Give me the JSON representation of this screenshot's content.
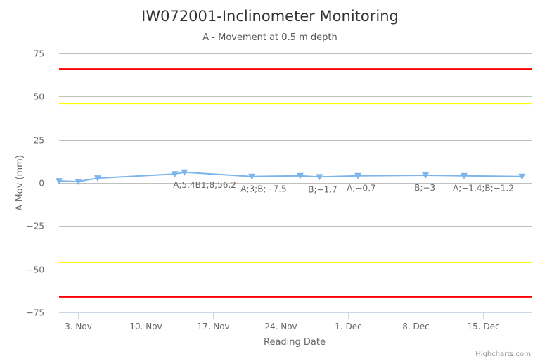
{
  "chart_data": {
    "type": "line",
    "title": "IW072001-Inclinometer Monitoring",
    "subtitle": "A - Movement at 0.5 m depth",
    "xlabel": "Reading Date",
    "ylabel": "A-Mov (mm)",
    "ylim": [
      -75,
      75
    ],
    "yticks": [
      "75",
      "50",
      "25",
      "0",
      "−25",
      "−50",
      "−75"
    ],
    "ytick_values": [
      75,
      50,
      25,
      0,
      -25,
      -50,
      -75
    ],
    "xlim": [
      "2016-11-01",
      "2016-12-20"
    ],
    "xticks": [
      {
        "label": "3. Nov",
        "date": "2016-11-03"
      },
      {
        "label": "10. Nov",
        "date": "2016-11-10"
      },
      {
        "label": "17. Nov",
        "date": "2016-11-17"
      },
      {
        "label": "24. Nov",
        "date": "2016-11-24"
      },
      {
        "label": "1. Dec",
        "date": "2016-12-01"
      },
      {
        "label": "8. Dec",
        "date": "2016-12-08"
      },
      {
        "label": "15. Dec",
        "date": "2016-12-15"
      }
    ],
    "grid": true,
    "threshold_lines": [
      {
        "value": 66,
        "color": "#ff0000"
      },
      {
        "value": 46,
        "color": "#ffff00"
      },
      {
        "value": -46,
        "color": "#ffff00"
      },
      {
        "value": -66,
        "color": "#ff0000"
      }
    ],
    "series": [
      {
        "color": "#7cb5ec",
        "marker": "triangle-down",
        "points": [
          {
            "x": "2016-11-01",
            "y": 1.2
          },
          {
            "x": "2016-11-03",
            "y": 0.8
          },
          {
            "x": "2016-11-05",
            "y": 2.8
          },
          {
            "x": "2016-11-13",
            "y": 5.2
          },
          {
            "x": "2016-11-14",
            "y": 6.2,
            "label": "A;5.4B1;8;56.2"
          },
          {
            "x": "2016-11-21",
            "y": 3.8,
            "label": "A;3;B;−7.5"
          },
          {
            "x": "2016-11-26",
            "y": 4.2
          },
          {
            "x": "2016-11-28",
            "y": 3.5,
            "label": "B;−1.7"
          },
          {
            "x": "2016-12-02",
            "y": 4.2,
            "label": "A;−0.7"
          },
          {
            "x": "2016-12-09",
            "y": 4.5,
            "label": "B;−3"
          },
          {
            "x": "2016-12-13",
            "y": 4.2,
            "label": "A;−1.4;B;−1.2"
          },
          {
            "x": "2016-12-19",
            "y": 3.8
          }
        ]
      }
    ]
  },
  "credits": "Highcharts.com"
}
